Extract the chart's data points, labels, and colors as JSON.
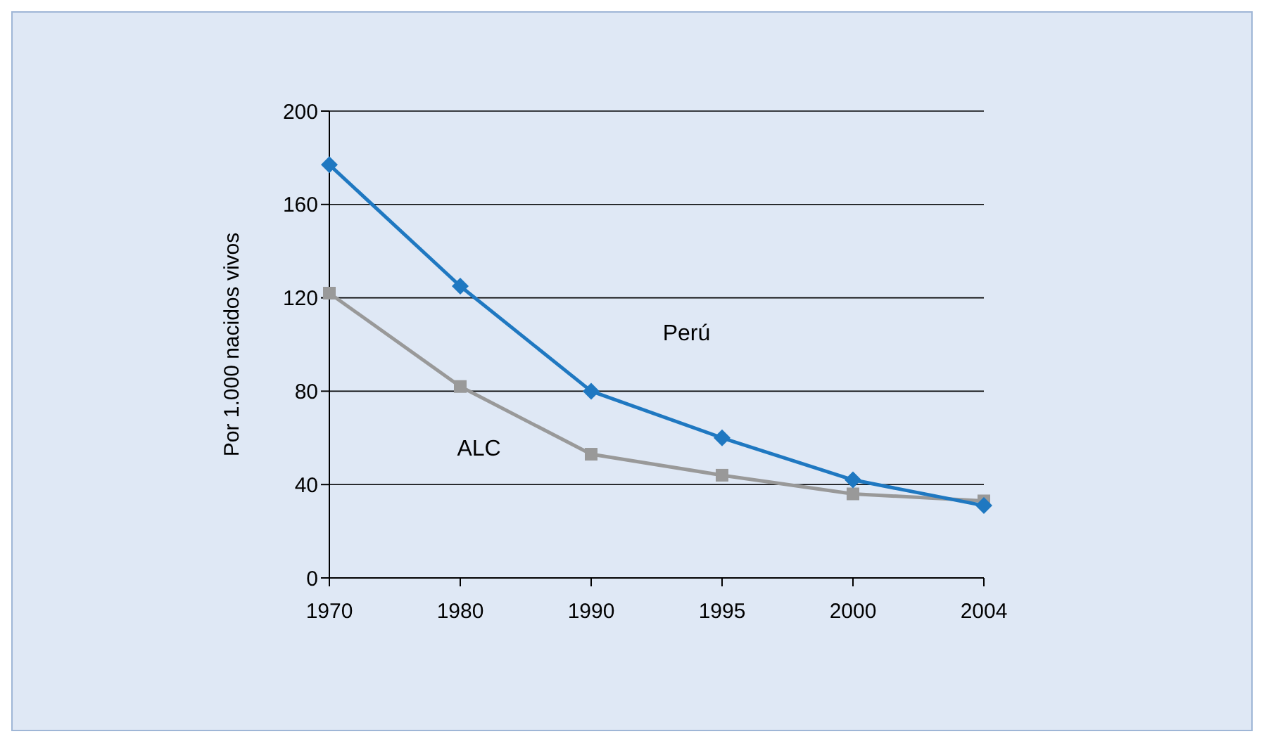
{
  "chart_data": {
    "type": "line",
    "ylabel": "Por 1.000 nacidos vivos",
    "categories": [
      "1970",
      "1980",
      "1990",
      "1995",
      "2000",
      "2004"
    ],
    "series": [
      {
        "name": "Perú",
        "color": "#1f78c1",
        "marker": "diamond",
        "values": [
          177,
          125,
          80,
          60,
          42,
          31
        ]
      },
      {
        "name": "ALC",
        "color": "#999999",
        "marker": "square",
        "values": [
          122,
          82,
          53,
          44,
          36,
          33
        ]
      }
    ],
    "ylim": [
      0,
      200
    ],
    "yticks": [
      0,
      40,
      80,
      120,
      160,
      200
    ],
    "grid": "y",
    "legend": false
  }
}
